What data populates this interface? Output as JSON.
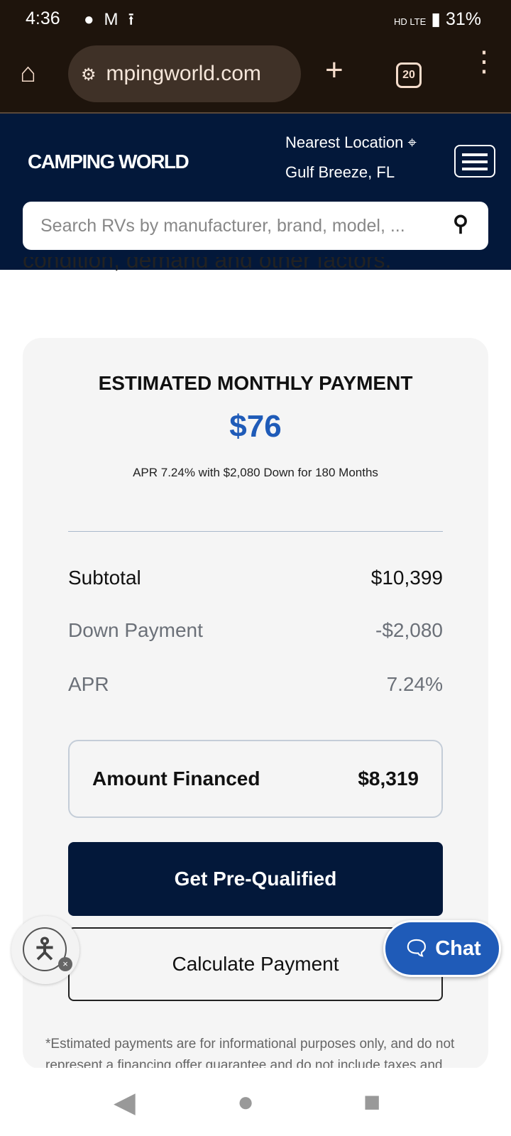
{
  "status_bar": {
    "time": "4:36",
    "notification_icons": [
      "chat-bubble-icon",
      "gmail-icon",
      "upload-icon"
    ],
    "network": "HD LTE",
    "battery": "31%"
  },
  "browser": {
    "url": "mpingworld.com",
    "tab_count": "20"
  },
  "header": {
    "logo": "CAMPING WORLD",
    "location_label": "Nearest Location",
    "location_value": "Gulf Breeze, FL",
    "search_placeholder": "Search RVs by manufacturer, brand, model, ..."
  },
  "content": {
    "partial_text": "condition, demand and other factors."
  },
  "payment_card": {
    "title": "ESTIMATED MONTHLY PAYMENT",
    "amount": "$76",
    "terms": "APR 7.24% with $2,080 Down for 180 Months",
    "rows": [
      {
        "label": "Subtotal",
        "value": "$10,399"
      },
      {
        "label": "Down Payment",
        "value": "-$2,080"
      },
      {
        "label": "APR",
        "value": "7.24%"
      }
    ],
    "financed_label": "Amount Financed",
    "financed_value": "$8,319",
    "prequalify_label": "Get Pre-Qualified",
    "calculate_label": "Calculate Payment",
    "disclaimer": "*Estimated payments are for informational purposes only, and do not represent a financing offer guarantee and do not include taxes and"
  },
  "chat": {
    "label": "Chat"
  },
  "colors": {
    "navy": "#03183a",
    "accent_blue": "#1f5bb8"
  }
}
